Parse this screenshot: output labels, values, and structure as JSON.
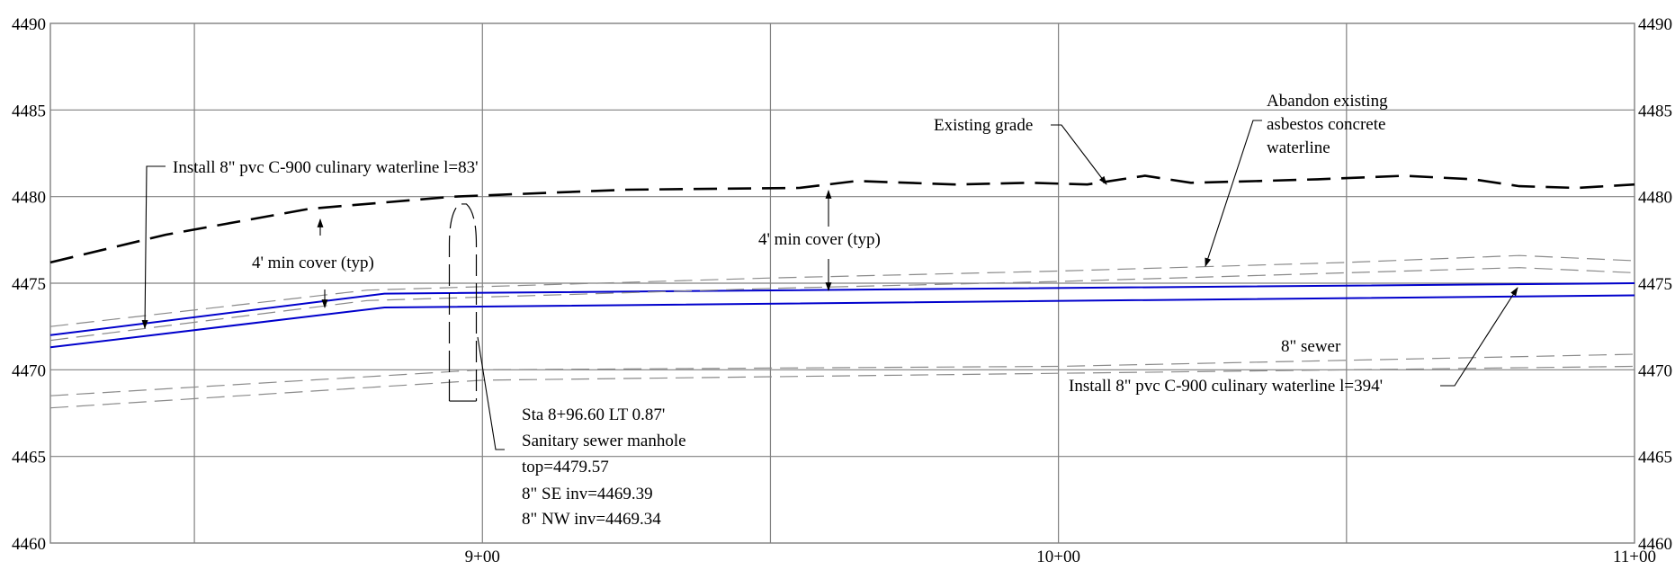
{
  "chart_data": {
    "type": "line",
    "title": "",
    "xlabel": "",
    "ylabel": "",
    "x_ticks": [
      {
        "station": 900,
        "label": "9+00"
      },
      {
        "station": 1000,
        "label": "10+00"
      },
      {
        "station": 1100,
        "label": "11+00"
      }
    ],
    "y_ticks": [
      4490,
      4485,
      4480,
      4475,
      4470,
      4465,
      4460
    ],
    "xlim": [
      825,
      1100
    ],
    "ylim": [
      4460,
      4490
    ],
    "grid": true,
    "series": [
      {
        "key": "existing-grade",
        "color": "#000000",
        "style": "long-dash",
        "x": [
          825,
          845,
          870,
          895,
          925,
          955,
          965,
          982,
          995,
          1005,
          1015,
          1023,
          1035,
          1045,
          1060,
          1072,
          1080,
          1090,
          1100
        ],
        "y": [
          4476.2,
          4477.8,
          4479.3,
          4480.0,
          4480.4,
          4480.5,
          4480.9,
          4480.7,
          4480.8,
          4480.7,
          4481.2,
          4480.8,
          4480.9,
          4481.0,
          4481.2,
          4481.0,
          4480.6,
          4480.5,
          4480.7
        ]
      },
      {
        "key": "waterline-top",
        "color": "#0000cc",
        "style": "solid",
        "x": [
          825,
          883,
          1100
        ],
        "y": [
          4472.0,
          4474.4,
          4475.0
        ]
      },
      {
        "key": "waterline-bottom",
        "color": "#0000cc",
        "style": "solid",
        "x": [
          825,
          883,
          1100
        ],
        "y": [
          4471.3,
          4473.6,
          4474.3
        ]
      },
      {
        "key": "abandoned-ac-upper",
        "color": "#8a8a8a",
        "style": "dash",
        "x": [
          825,
          880,
          950,
          1000,
          1050,
          1080,
          1100
        ],
        "y": [
          4472.5,
          4474.6,
          4475.3,
          4475.7,
          4476.2,
          4476.6,
          4476.3
        ]
      },
      {
        "key": "abandoned-ac-lower",
        "color": "#8a8a8a",
        "style": "dash",
        "x": [
          825,
          880,
          950,
          1000,
          1050,
          1080,
          1100
        ],
        "y": [
          4471.7,
          4474.0,
          4474.7,
          4475.1,
          4475.6,
          4475.9,
          4475.6
        ]
      },
      {
        "key": "sewer-upper",
        "color": "#8a8a8a",
        "style": "dash",
        "x": [
          825,
          900,
          1000,
          1100
        ],
        "y": [
          4468.5,
          4470.0,
          4470.2,
          4470.9
        ]
      },
      {
        "key": "sewer-lower",
        "color": "#8a8a8a",
        "style": "dash",
        "x": [
          825,
          900,
          1000,
          1100
        ],
        "y": [
          4467.8,
          4469.4,
          4469.8,
          4470.2
        ]
      }
    ],
    "manhole": {
      "station": 896.6,
      "top": 4479.57,
      "invert": 4469.34
    },
    "annotations": [
      {
        "key": "install-83",
        "lines": [
          "Install 8\" pvc C-900 culinary waterline l=83'"
        ]
      },
      {
        "key": "min-cover-1",
        "lines": [
          "4' min cover (typ)"
        ]
      },
      {
        "key": "min-cover-2",
        "lines": [
          "4' min cover (typ)"
        ]
      },
      {
        "key": "existing-grade",
        "lines": [
          "Existing grade"
        ]
      },
      {
        "key": "abandon",
        "lines": [
          "Abandon existing",
          "asbestos concrete",
          "waterline"
        ]
      },
      {
        "key": "sewer",
        "lines": [
          "8\" sewer"
        ]
      },
      {
        "key": "install-394",
        "lines": [
          "Install 8\" pvc C-900 culinary waterline l=394'"
        ]
      },
      {
        "key": "manhole",
        "lines": [
          "Sta 8+96.60 LT 0.87'",
          "Sanitary sewer manhole",
          "top=4479.57"
        ]
      },
      {
        "key": "inverts",
        "lines": [
          "8\" SE inv=4469.39",
          "8\" NW inv=4469.34"
        ]
      }
    ]
  }
}
